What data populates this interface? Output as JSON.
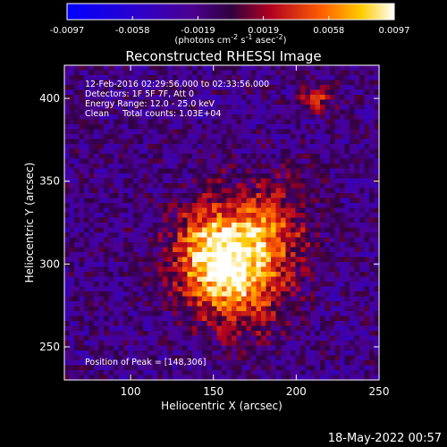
{
  "chart_data": {
    "type": "heatmap",
    "title": "Reconstructed RHESSI Image",
    "xlabel": "Heliocentric X (arcsec)",
    "ylabel": "Heliocentric Y (arcsec)",
    "xlim": [
      60,
      250
    ],
    "ylim": [
      230,
      420
    ],
    "x_ticks": [
      100,
      150,
      200,
      250
    ],
    "y_ticks": [
      250,
      300,
      350,
      400
    ],
    "colorbar": {
      "ticks": [
        "-0.0097",
        "-0.0058",
        "-0.0019",
        "0.0019",
        "0.0058",
        "0.0097"
      ],
      "range": [
        -0.0097,
        0.0097
      ],
      "units_prefix": "(photons cm",
      "units_exp1": "-2",
      "units_mid": " s",
      "units_exp2": "-1",
      "units_mid2": " asec",
      "units_exp3": "-2",
      "units_suffix": ")"
    },
    "annotations": [
      "12-Feb-2016 02:29:56.000 to 02:33:56.000",
      "Detectors: 1F 5F 7F, Att 0",
      "Energy Range: 12.0 - 25.0 keV",
      "Clean",
      "Total counts: 1.03E+04"
    ],
    "peak_text": "Position of Peak = [148,306]",
    "peak": [
      148,
      306
    ],
    "sources": [
      {
        "x": 150,
        "y": 305,
        "amplitude": 1.0
      },
      {
        "x": 183,
        "y": 320,
        "amplitude": 0.55
      },
      {
        "x": 170,
        "y": 285,
        "amplitude": 0.45
      },
      {
        "x": 213,
        "y": 400,
        "amplitude": 0.5
      }
    ],
    "colormap": "blue-purple-red-yellow-white"
  },
  "footer_date": "18-May-2022 00:57"
}
